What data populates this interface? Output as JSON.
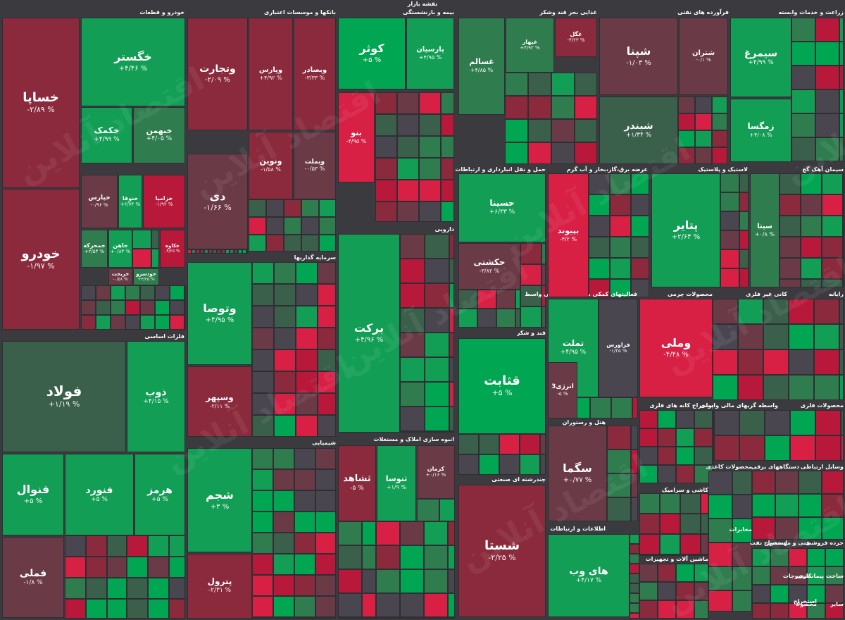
{
  "title": "نقشه بازار",
  "colors": {
    "green_strong": "#00a651",
    "green": "#139e55",
    "green_mid": "#2f7d4f",
    "green_dark": "#3a5f4a",
    "neutral": "#4a4650",
    "red_dark": "#6a3a46",
    "red_mid": "#8a2a3c",
    "red": "#b8193a",
    "red_strong": "#d81f44"
  },
  "watermark": "اقتصاد آنلاین",
  "sectors": [
    {
      "label": "خودرو و قطعات"
    },
    {
      "label": "بانکها و موسسات اعتباری"
    },
    {
      "label": "بیمه و بازنشستگی"
    },
    {
      "label": "غذایی بجز قند وشکر"
    },
    {
      "label": "فرآورده های نفتی"
    },
    {
      "label": "زراعت و خدمات وابسته"
    },
    {
      "label": "فلزات اساسی"
    },
    {
      "label": "سرمایه گذاریها"
    },
    {
      "label": "دارویی"
    },
    {
      "label": "حمل و نقل انبارداری و ارتباطات"
    },
    {
      "label": "عرضه برق،گاز،بخار و آب گرم"
    },
    {
      "label": "لاستیک و پلاستیک"
    },
    {
      "label": "سیمان آهک گچ"
    },
    {
      "label": "قند و شکر"
    },
    {
      "label": "فعالیتهای کمکی به نهاد های مالی واسط"
    },
    {
      "label": "محصولات چرمی"
    },
    {
      "label": "کانی غیر فلزی"
    },
    {
      "label": "رایانه"
    },
    {
      "label": "شیمیایی"
    },
    {
      "label": "انبوه سازی املاک و مستغلات"
    },
    {
      "label": "هتل و رستوران"
    },
    {
      "label": "استخراج کانه های فلزی"
    },
    {
      "label": "واسطه گریهای مالی و پولی"
    },
    {
      "label": "محصولات فلزی"
    },
    {
      "label": "چندرشته ای صنعتی"
    },
    {
      "label": "کاشی و سرامیک"
    },
    {
      "label": "محصولات کاغذی"
    },
    {
      "label": "دستگاههای برقی"
    },
    {
      "label": "وسایل ارتباطی"
    },
    {
      "label": "اطلاعات و ارتباطات"
    },
    {
      "label": "مخابرات"
    },
    {
      "label": "فنی و مهندسی"
    },
    {
      "label": "خرده فروشی"
    },
    {
      "label": "استخراج نفت"
    },
    {
      "label": "ماشین آلات و تجهیزات"
    },
    {
      "label": "منسوجات"
    },
    {
      "label": "ساخت پیمانکاری"
    },
    {
      "label": "محصولا"
    },
    {
      "label": "سایر"
    },
    {
      "label": "استخراج"
    }
  ],
  "tiles": [
    {
      "name": "خساپا",
      "pct": "-۲/۸۹ %"
    },
    {
      "name": "خودرو",
      "pct": "-۱/۹۷ %"
    },
    {
      "name": "خگستر",
      "pct": "+۴/۴۶ %"
    },
    {
      "name": "خکمک",
      "pct": "+۴/۹۹ %"
    },
    {
      "name": "خبهمن",
      "pct": "+۴/۰۵ %"
    },
    {
      "name": "خپارس",
      "pct": "-۰/۹۶ %"
    },
    {
      "name": "خنوفا",
      "pct": "+۲/۷۴ %"
    },
    {
      "name": "خزامیا",
      "pct": "-۱/۹۲ %"
    },
    {
      "name": "خمحرکه",
      "pct": "+۲/۵۳ %"
    },
    {
      "name": "خاهن",
      "pct": "+۰/۸۴ %"
    },
    {
      "name": "خریخت",
      "pct": "-۰/۵۸ %"
    },
    {
      "name": "خودسرو",
      "pct": "+۳/۲۵ %"
    },
    {
      "name": "خکاوه",
      "pct": "-۴/۲۵ %"
    },
    {
      "name": "وتجارت",
      "pct": "-۲/۰۹ %"
    },
    {
      "name": "وپارس",
      "pct": "+۴/۹۲ %"
    },
    {
      "name": "وبصادر",
      "pct": "-۳/۳۳ %"
    },
    {
      "name": "دی",
      "pct": "-۱/۶۶ %"
    },
    {
      "name": "ونوین",
      "pct": "-۱/۵۸ %"
    },
    {
      "name": "وبملت",
      "pct": "-۰/۵۳ %"
    },
    {
      "name": "کوثر",
      "pct": "+۵ %"
    },
    {
      "name": "پارسیان",
      "pct": "+۴/۹۵ %"
    },
    {
      "name": "بنو",
      "pct": "-۴/۹۵ %"
    },
    {
      "name": "غسالم",
      "pct": "+۴/۸۵ %"
    },
    {
      "name": "غبهار",
      "pct": "+۴/۹۲ %"
    },
    {
      "name": "غگل",
      "pct": "-۴/۲۳ %"
    },
    {
      "name": "شپنا",
      "pct": "-۱/۰۳ %"
    },
    {
      "name": "شتران",
      "pct": "-۰/۱ %"
    },
    {
      "name": "شبندر",
      "pct": "+۱/۳۴ %"
    },
    {
      "name": "سیمرغ",
      "pct": "+۴/۹۹ %"
    },
    {
      "name": "زمگسا",
      "pct": "+۴/۰۸ %"
    },
    {
      "name": "فولاد",
      "pct": "+۱/۱۹ %"
    },
    {
      "name": "ذوب",
      "pct": "+۴/۱۵ %"
    },
    {
      "name": "فنوال",
      "pct": "+۵ %"
    },
    {
      "name": "فنورد",
      "pct": "+۵ %"
    },
    {
      "name": "هرمز",
      "pct": "+۵ %"
    },
    {
      "name": "فملی",
      "pct": "-۱/۸ %"
    },
    {
      "name": "وتوصا",
      "pct": "+۴/۹۵ %"
    },
    {
      "name": "وسپهر",
      "pct": "-۲/۱۱ %"
    },
    {
      "name": "برکت",
      "pct": "+۴/۹۶ %"
    },
    {
      "name": "حسینا",
      "pct": "+۶/۳۳ %"
    },
    {
      "name": "حکشتی",
      "pct": "-۳/۸۲ %"
    },
    {
      "name": "بپیوند",
      "pct": "-۴/۲ %"
    },
    {
      "name": "پتایر",
      "pct": "+۲/۶۴ %"
    },
    {
      "name": "سیتا",
      "pct": "+۰/۸ %"
    },
    {
      "name": "قثابت",
      "pct": "+۵ %"
    },
    {
      "name": "تملت",
      "pct": "+۴/۹۵ %"
    },
    {
      "name": "وملی",
      "pct": "-۴/۴۸ %"
    },
    {
      "name": "شجم",
      "pct": "+۳ %"
    },
    {
      "name": "پترول",
      "pct": "-۲/۳۱ %"
    },
    {
      "name": "ثشاهد",
      "pct": "-۵ %"
    },
    {
      "name": "ثنوسا",
      "pct": "+۱/۹ %"
    },
    {
      "name": "شستا",
      "pct": "-۲/۲۵ %"
    },
    {
      "name": "سگما",
      "pct": "+۰/۷۷ %"
    },
    {
      "name": "های وب",
      "pct": "+۴/۱۷ %"
    },
    {
      "name": "کرمان",
      "pct": "+۰/۱۶ %"
    },
    {
      "name": "فراورس",
      "pct": "-۱/۲۵ %"
    },
    {
      "name": "انرژی3",
      "pct": "-۵ %"
    }
  ]
}
